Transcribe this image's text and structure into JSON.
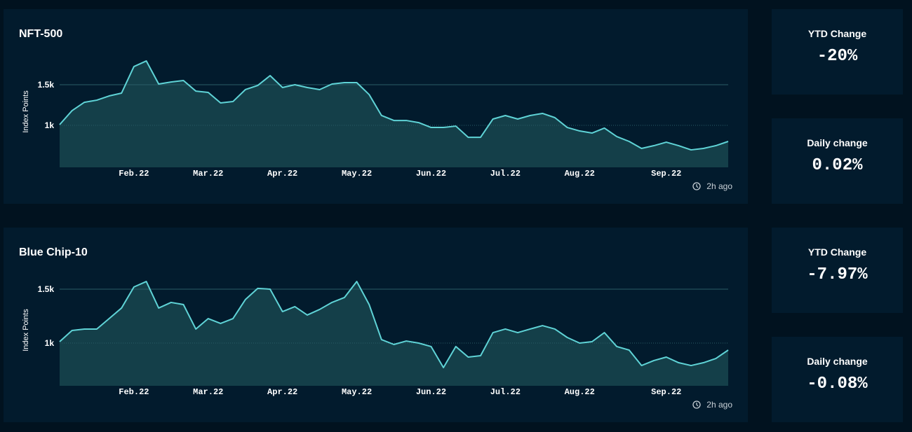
{
  "chart_data": [
    {
      "type": "area",
      "title": "NFT-500",
      "y_label": "Index Points",
      "updated": "2h ago",
      "color": "#5fd3d6",
      "fill": "#143f49",
      "grid": true,
      "categories": [
        null,
        null,
        null,
        null,
        null,
        null,
        "Feb.22",
        null,
        null,
        null,
        null,
        null,
        "Mar.22",
        null,
        null,
        null,
        null,
        null,
        "Apr.22",
        null,
        null,
        null,
        null,
        null,
        "May.22",
        null,
        null,
        null,
        null,
        null,
        "Jun.22",
        null,
        null,
        null,
        null,
        null,
        "Jul.22",
        null,
        null,
        null,
        null,
        null,
        "Aug.22",
        null,
        null,
        null,
        null,
        null,
        null,
        "Sep.22",
        null,
        null,
        null,
        null,
        null
      ],
      "values": [
        1009,
        1181,
        1284,
        1310,
        1362,
        1397,
        1724,
        1793,
        1509,
        1534,
        1552,
        1422,
        1405,
        1276,
        1293,
        1440,
        1491,
        1612,
        1466,
        1500,
        1466,
        1440,
        1509,
        1526,
        1526,
        1379,
        1121,
        1060,
        1060,
        1034,
        974,
        974,
        991,
        853,
        853,
        1078,
        1121,
        1078,
        1121,
        1147,
        1095,
        974,
        931,
        905,
        966,
        862,
        802,
        716,
        750,
        793,
        750,
        698,
        716,
        750,
        802
      ],
      "ylim": [
        483,
        2026
      ],
      "yticks": [
        {
          "value": 1000,
          "label": "1k"
        },
        {
          "value": 1500,
          "label": "1.5k"
        }
      ]
    },
    {
      "type": "area",
      "title": "Blue Chip-10",
      "y_label": "Index Points",
      "updated": "2h ago",
      "color": "#5fd3d6",
      "fill": "#143f49",
      "grid": true,
      "categories": [
        null,
        null,
        null,
        null,
        null,
        null,
        "Feb.22",
        null,
        null,
        null,
        null,
        null,
        "Mar.22",
        null,
        null,
        null,
        null,
        null,
        "Apr.22",
        null,
        null,
        null,
        null,
        null,
        "May.22",
        null,
        null,
        null,
        null,
        null,
        "Jun.22",
        null,
        null,
        null,
        null,
        null,
        "Jul.22",
        null,
        null,
        null,
        null,
        null,
        "Aug.22",
        null,
        null,
        null,
        null,
        null,
        null,
        "Sep.22",
        null,
        null,
        null,
        null,
        null
      ],
      "values": [
        1013,
        1117,
        1130,
        1130,
        1227,
        1325,
        1520,
        1571,
        1325,
        1377,
        1357,
        1130,
        1227,
        1182,
        1227,
        1403,
        1507,
        1500,
        1292,
        1338,
        1260,
        1312,
        1377,
        1422,
        1571,
        1357,
        1032,
        987,
        1019,
        1000,
        968,
        773,
        968,
        870,
        883,
        1097,
        1130,
        1097,
        1130,
        1162,
        1130,
        1052,
        1000,
        1013,
        1097,
        968,
        935,
        792,
        838,
        870,
        818,
        792,
        818,
        857,
        935
      ],
      "ylim": [
        604,
        1766
      ],
      "yticks": [
        {
          "value": 1000,
          "label": "1k"
        },
        {
          "value": 1500,
          "label": "1.5k"
        }
      ]
    }
  ],
  "cards": [
    [
      {
        "label": "YTD Change",
        "value": "-20%"
      },
      {
        "label": "Daily change",
        "value": "0.02%"
      }
    ],
    [
      {
        "label": "YTD Change",
        "value": "-7.97%"
      },
      {
        "label": "Daily change",
        "value": "-0.08%"
      }
    ]
  ]
}
